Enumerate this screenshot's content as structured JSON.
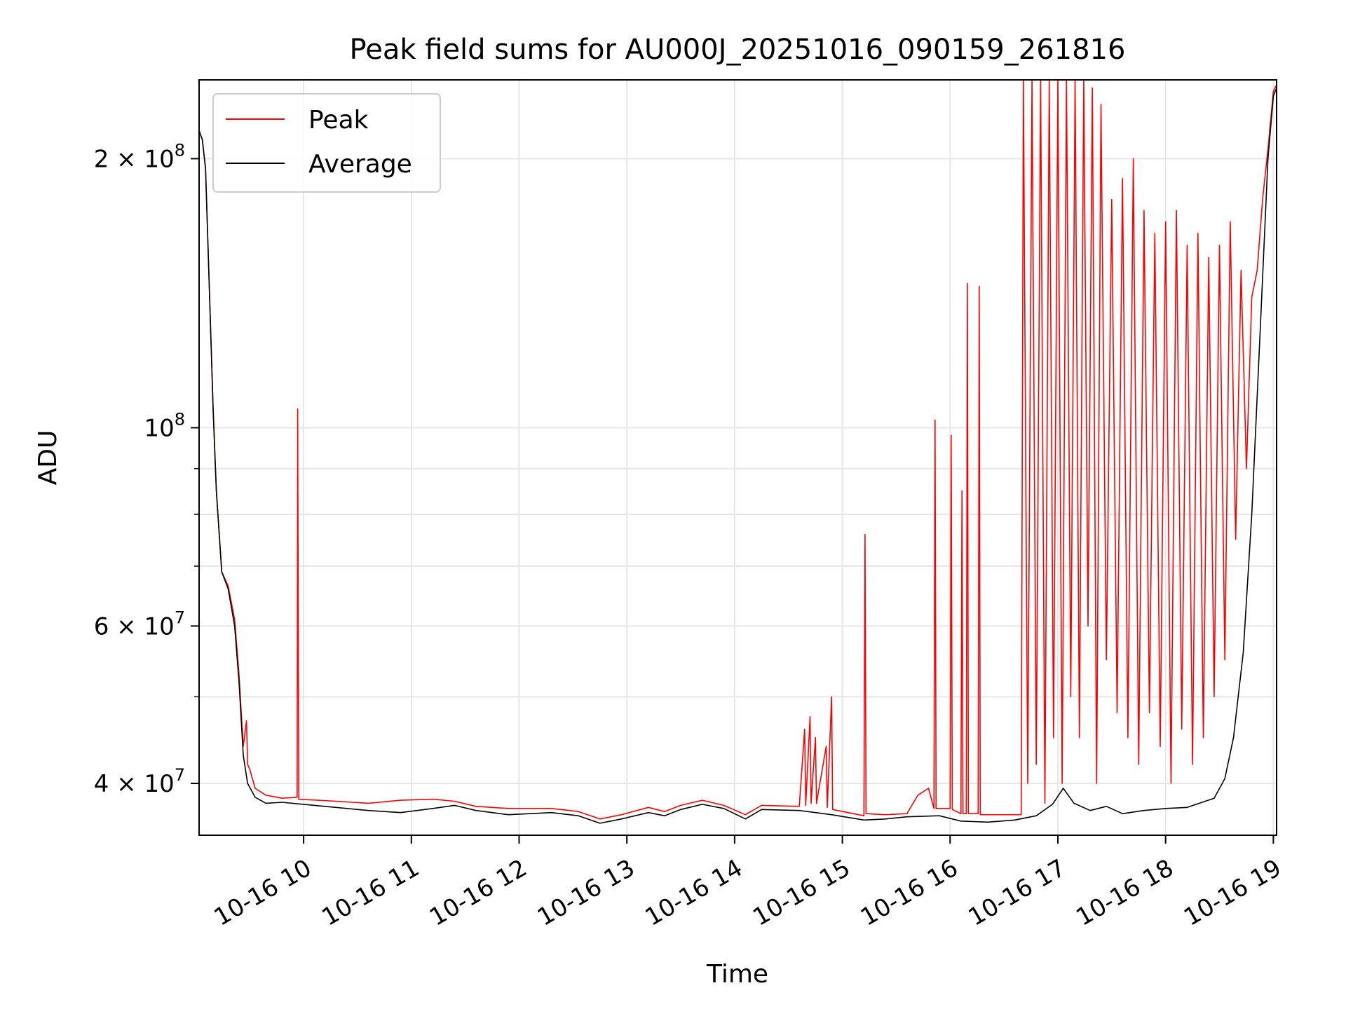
{
  "chart_data": {
    "type": "line",
    "title": "Peak field sums for AU000J_20251016_090159_261816",
    "xlabel": "Time",
    "ylabel": "ADU",
    "yscale": "log",
    "grid": true,
    "legend_position": "upper-left",
    "x_domain_hours": [
      9.03,
      19.03
    ],
    "ylim": [
      35000000,
      245000000
    ],
    "x_ticks": [
      {
        "hour": 10,
        "label": "10-16 10"
      },
      {
        "hour": 11,
        "label": "10-16 11"
      },
      {
        "hour": 12,
        "label": "10-16 12"
      },
      {
        "hour": 13,
        "label": "10-16 13"
      },
      {
        "hour": 14,
        "label": "10-16 14"
      },
      {
        "hour": 15,
        "label": "10-16 15"
      },
      {
        "hour": 16,
        "label": "10-16 16"
      },
      {
        "hour": 17,
        "label": "10-16 17"
      },
      {
        "hour": 18,
        "label": "10-16 18"
      },
      {
        "hour": 19,
        "label": "10-16 19"
      }
    ],
    "y_major_ticks": [
      {
        "value": 40000000,
        "mantissa": "4",
        "exp": "7"
      },
      {
        "value": 60000000,
        "mantissa": "6",
        "exp": "7"
      },
      {
        "value": 100000000,
        "mantissa": "",
        "exp": "8"
      },
      {
        "value": 200000000,
        "mantissa": "2",
        "exp": "8"
      }
    ],
    "y_minor_grid": [
      50000000,
      70000000,
      80000000,
      90000000
    ],
    "series": [
      {
        "name": "Average",
        "color": "#000000",
        "points": [
          [
            9.03,
            215000000
          ],
          [
            9.06,
            210000000
          ],
          [
            9.09,
            195000000
          ],
          [
            9.12,
            150000000
          ],
          [
            9.16,
            105000000
          ],
          [
            9.19,
            85000000
          ],
          [
            9.24,
            69000000
          ],
          [
            9.3,
            66000000
          ],
          [
            9.36,
            60000000
          ],
          [
            9.4,
            52000000
          ],
          [
            9.44,
            43000000
          ],
          [
            9.48,
            40000000
          ],
          [
            9.55,
            38600000
          ],
          [
            9.65,
            38000000
          ],
          [
            9.8,
            38100000
          ],
          [
            10.0,
            37900000
          ],
          [
            10.3,
            37600000
          ],
          [
            10.6,
            37300000
          ],
          [
            10.9,
            37100000
          ],
          [
            11.2,
            37500000
          ],
          [
            11.4,
            37800000
          ],
          [
            11.6,
            37300000
          ],
          [
            11.9,
            36900000
          ],
          [
            12.1,
            37000000
          ],
          [
            12.3,
            37100000
          ],
          [
            12.55,
            36800000
          ],
          [
            12.75,
            36100000
          ],
          [
            12.95,
            36500000
          ],
          [
            13.2,
            37100000
          ],
          [
            13.35,
            36800000
          ],
          [
            13.5,
            37400000
          ],
          [
            13.7,
            37900000
          ],
          [
            13.9,
            37500000
          ],
          [
            14.1,
            36500000
          ],
          [
            14.25,
            37400000
          ],
          [
            14.6,
            37300000
          ],
          [
            14.9,
            36900000
          ],
          [
            15.2,
            36400000
          ],
          [
            15.4,
            36500000
          ],
          [
            15.6,
            36700000
          ],
          [
            15.9,
            36800000
          ],
          [
            16.1,
            36300000
          ],
          [
            16.35,
            36200000
          ],
          [
            16.6,
            36400000
          ],
          [
            16.8,
            36800000
          ],
          [
            16.95,
            37900000
          ],
          [
            17.05,
            39500000
          ],
          [
            17.15,
            38000000
          ],
          [
            17.3,
            37300000
          ],
          [
            17.45,
            37700000
          ],
          [
            17.6,
            37000000
          ],
          [
            17.8,
            37300000
          ],
          [
            18.0,
            37500000
          ],
          [
            18.2,
            37600000
          ],
          [
            18.45,
            38500000
          ],
          [
            18.55,
            40500000
          ],
          [
            18.63,
            45000000
          ],
          [
            18.72,
            56000000
          ],
          [
            18.8,
            80000000
          ],
          [
            18.88,
            130000000
          ],
          [
            18.95,
            200000000
          ],
          [
            19.0,
            235000000
          ],
          [
            19.03,
            240000000
          ]
        ]
      },
      {
        "name": "Peak",
        "color": "#ff0000",
        "points": [
          [
            9.03,
            215000000
          ],
          [
            9.06,
            210000000
          ],
          [
            9.09,
            195000000
          ],
          [
            9.12,
            150000000
          ],
          [
            9.16,
            105000000
          ],
          [
            9.19,
            85000000
          ],
          [
            9.24,
            69000000
          ],
          [
            9.3,
            66500000
          ],
          [
            9.36,
            61000000
          ],
          [
            9.4,
            53000000
          ],
          [
            9.44,
            44000000
          ],
          [
            9.47,
            47000000
          ],
          [
            9.48,
            42000000
          ],
          [
            9.5,
            41500000
          ],
          [
            9.55,
            39500000
          ],
          [
            9.65,
            38800000
          ],
          [
            9.8,
            38500000
          ],
          [
            9.94,
            38600000
          ],
          [
            9.945,
            105000000
          ],
          [
            9.955,
            38400000
          ],
          [
            10.3,
            38200000
          ],
          [
            10.6,
            38000000
          ],
          [
            10.9,
            38300000
          ],
          [
            11.2,
            38400000
          ],
          [
            11.4,
            38200000
          ],
          [
            11.6,
            37700000
          ],
          [
            11.9,
            37500000
          ],
          [
            12.1,
            37500000
          ],
          [
            12.3,
            37500000
          ],
          [
            12.55,
            37200000
          ],
          [
            12.75,
            36500000
          ],
          [
            12.95,
            36900000
          ],
          [
            13.2,
            37600000
          ],
          [
            13.35,
            37200000
          ],
          [
            13.5,
            37800000
          ],
          [
            13.7,
            38300000
          ],
          [
            13.9,
            37800000
          ],
          [
            14.1,
            36900000
          ],
          [
            14.25,
            37800000
          ],
          [
            14.6,
            37700000
          ],
          [
            14.65,
            46000000
          ],
          [
            14.66,
            37800000
          ],
          [
            14.7,
            47500000
          ],
          [
            14.71,
            38000000
          ],
          [
            14.75,
            45000000
          ],
          [
            14.76,
            38000000
          ],
          [
            14.85,
            44000000
          ],
          [
            14.86,
            37600000
          ],
          [
            14.9,
            50000000
          ],
          [
            14.91,
            37400000
          ],
          [
            15.2,
            36800000
          ],
          [
            15.21,
            76000000
          ],
          [
            15.22,
            37000000
          ],
          [
            15.4,
            36900000
          ],
          [
            15.6,
            37000000
          ],
          [
            15.7,
            38800000
          ],
          [
            15.8,
            39500000
          ],
          [
            15.85,
            37500000
          ],
          [
            15.86,
            102000000
          ],
          [
            15.87,
            37500000
          ],
          [
            16.0,
            37500000
          ],
          [
            16.01,
            98000000
          ],
          [
            16.02,
            37400000
          ],
          [
            16.1,
            37000000
          ],
          [
            16.11,
            85000000
          ],
          [
            16.12,
            37000000
          ],
          [
            16.15,
            37000000
          ],
          [
            16.16,
            145000000
          ],
          [
            16.17,
            37000000
          ],
          [
            16.26,
            37000000
          ],
          [
            16.27,
            144000000
          ],
          [
            16.28,
            36900000
          ],
          [
            16.66,
            36900000
          ],
          [
            16.68,
            245000000
          ],
          [
            16.72,
            40000000
          ],
          [
            16.76,
            245000000
          ],
          [
            16.8,
            42000000
          ],
          [
            16.84,
            245000000
          ],
          [
            16.88,
            38000000
          ],
          [
            16.92,
            245000000
          ],
          [
            16.96,
            45000000
          ],
          [
            17.0,
            245000000
          ],
          [
            17.04,
            40000000
          ],
          [
            17.08,
            245000000
          ],
          [
            17.12,
            50000000
          ],
          [
            17.16,
            245000000
          ],
          [
            17.2,
            45000000
          ],
          [
            17.24,
            245000000
          ],
          [
            17.28,
            60000000
          ],
          [
            17.32,
            240000000
          ],
          [
            17.36,
            40000000
          ],
          [
            17.4,
            230000000
          ],
          [
            17.45,
            55000000
          ],
          [
            17.5,
            180000000
          ],
          [
            17.55,
            48000000
          ],
          [
            17.6,
            190000000
          ],
          [
            17.65,
            45000000
          ],
          [
            17.7,
            200000000
          ],
          [
            17.75,
            42000000
          ],
          [
            17.8,
            175000000
          ],
          [
            17.85,
            48000000
          ],
          [
            17.9,
            165000000
          ],
          [
            17.95,
            44000000
          ],
          [
            18.0,
            170000000
          ],
          [
            18.05,
            40000000
          ],
          [
            18.1,
            175000000
          ],
          [
            18.15,
            46000000
          ],
          [
            18.2,
            160000000
          ],
          [
            18.25,
            42000000
          ],
          [
            18.3,
            165000000
          ],
          [
            18.35,
            45000000
          ],
          [
            18.4,
            155000000
          ],
          [
            18.45,
            50000000
          ],
          [
            18.5,
            160000000
          ],
          [
            18.55,
            55000000
          ],
          [
            18.6,
            170000000
          ],
          [
            18.65,
            75000000
          ],
          [
            18.7,
            150000000
          ],
          [
            18.75,
            90000000
          ],
          [
            18.8,
            140000000
          ],
          [
            18.85,
            150000000
          ],
          [
            18.9,
            180000000
          ],
          [
            18.95,
            205000000
          ],
          [
            19.0,
            238000000
          ],
          [
            19.03,
            242000000
          ]
        ]
      }
    ]
  },
  "legend": {
    "entries": [
      {
        "label": "Peak",
        "color": "#ff0000"
      },
      {
        "label": "Average",
        "color": "#000000"
      }
    ]
  }
}
